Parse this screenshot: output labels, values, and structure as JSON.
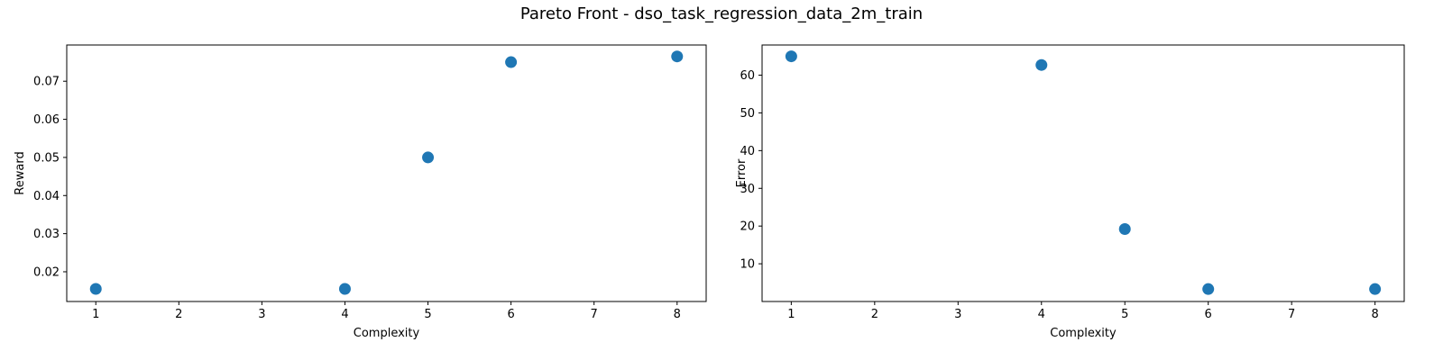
{
  "figure_title": "Pareto Front - dso_task_regression_data_2m_train",
  "colors": {
    "marker": "#1f77b4",
    "axis": "#000000"
  },
  "chart_data": [
    {
      "type": "scatter",
      "title": "",
      "xlabel": "Complexity",
      "ylabel": "Reward",
      "xlim": [
        0.65,
        8.35
      ],
      "ylim": [
        0.0122,
        0.0795
      ],
      "xticks": [
        1,
        2,
        3,
        4,
        5,
        6,
        7,
        8
      ],
      "yticks": [
        0.02,
        0.03,
        0.04,
        0.05,
        0.06,
        0.07
      ],
      "ytick_labels": [
        "0.02",
        "0.03",
        "0.04",
        "0.05",
        "0.06",
        "0.07"
      ],
      "grid": false,
      "x": [
        1,
        4,
        5,
        6,
        8
      ],
      "y": [
        0.0155,
        0.0155,
        0.05,
        0.075,
        0.0765
      ]
    },
    {
      "type": "scatter",
      "title": "",
      "xlabel": "Complexity",
      "ylabel": "Error",
      "xlim": [
        0.65,
        8.35
      ],
      "ylim": [
        0.0,
        68.0
      ],
      "xticks": [
        1,
        2,
        3,
        4,
        5,
        6,
        7,
        8
      ],
      "yticks": [
        10,
        20,
        30,
        40,
        50,
        60
      ],
      "ytick_labels": [
        "10",
        "20",
        "30",
        "40",
        "50",
        "60"
      ],
      "grid": false,
      "x": [
        1,
        4,
        5,
        6,
        8
      ],
      "y": [
        65.0,
        62.7,
        19.2,
        3.3,
        3.3
      ]
    }
  ]
}
